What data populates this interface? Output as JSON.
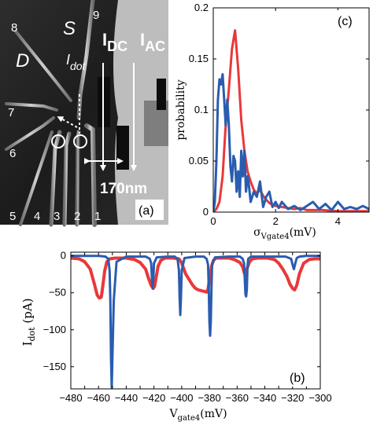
{
  "panel_a": {
    "panel_label": "(a)",
    "gate_numbers": [
      "1",
      "2",
      "3",
      "4",
      "5",
      "6",
      "7",
      "8",
      "9"
    ],
    "region_s": "S",
    "region_d": "D",
    "idot_main": "I",
    "idot_sub": "dot",
    "idc_main": "I",
    "idc_sub": "DC",
    "iac_main": "I",
    "iac_sub": "AC",
    "scale_bar": "170nm"
  },
  "chart_data": [
    {
      "panel": "b",
      "panel_label": "(b)",
      "type": "line",
      "xlabel_main": "V",
      "xlabel_sub": "gate4",
      "xlabel_unit": "(mV)",
      "ylabel_main": "I",
      "ylabel_sub": "dot",
      "ylabel_unit": " (pA)",
      "xlim": [
        -480,
        -300
      ],
      "ylim": [
        -180,
        5
      ],
      "xticks": [
        -480,
        -470,
        -460,
        -450,
        -440,
        -430,
        -420,
        -410,
        -400,
        -390,
        -380,
        -370,
        -360,
        -350,
        -340,
        -330,
        -320,
        -310,
        -300
      ],
      "xticklabels": [
        "−480",
        "−460",
        "−440",
        "−420",
        "−400",
        "−380",
        "−360",
        "−340",
        "−320",
        "−300"
      ],
      "xticklabel_values": [
        -480,
        -460,
        -440,
        -420,
        -400,
        -380,
        -360,
        -340,
        -320,
        -300
      ],
      "yticks": [
        0,
        -50,
        -100,
        -150
      ],
      "yticklabels": [
        "0",
        "−50",
        "−100",
        "−150"
      ],
      "series": [
        {
          "color": "#e8383a",
          "x": [
            -480,
            -474,
            -470,
            -466,
            -463,
            -461,
            -459.5,
            -458,
            -457,
            -455.5,
            -454,
            -452,
            -448,
            -440,
            -434,
            -430,
            -426,
            -424,
            -422,
            -420.5,
            -419.5,
            -418.5,
            -417,
            -415,
            -412,
            -406,
            -402,
            -400.5,
            -399,
            -397,
            -394,
            -392,
            -390,
            -388,
            -386,
            -384,
            -382,
            -381,
            -380,
            -378.5,
            -377,
            -375,
            -371,
            -366,
            -362,
            -358,
            -356,
            -355,
            -354,
            -353,
            -351,
            -349,
            -345,
            -338,
            -333,
            -330,
            -327,
            -324,
            -322,
            -320,
            -318.5,
            -317,
            -315,
            -312,
            -308,
            -304,
            -300
          ],
          "y": [
            -3,
            -4,
            -8,
            -18,
            -38,
            -53,
            -57,
            -56,
            -42,
            -20,
            -8,
            -4,
            -3,
            -3,
            -5,
            -9,
            -18,
            -30,
            -40,
            -44,
            -41,
            -30,
            -14,
            -6,
            -3,
            -3,
            -4,
            -8,
            -15,
            -25,
            -34,
            -40,
            -44,
            -46,
            -47,
            -48,
            -49,
            -45,
            -32,
            -14,
            -6,
            -3,
            -3,
            -3,
            -5,
            -9,
            -15,
            -22,
            -27,
            -18,
            -8,
            -4,
            -3,
            -3,
            -5,
            -10,
            -18,
            -28,
            -38,
            -44,
            -46,
            -40,
            -24,
            -10,
            -5,
            -4,
            -4
          ]
        },
        {
          "color": "#2a5cb0",
          "x": [
            -480,
            -460,
            -455,
            -453,
            -452,
            -451.5,
            -451,
            -450.5,
            -450,
            -449,
            -447,
            -440,
            -426,
            -423,
            -422,
            -421.5,
            -421,
            -420.5,
            -420,
            -418,
            -410,
            -405,
            -403,
            -402,
            -401.5,
            -401,
            -400.5,
            -400,
            -398,
            -390,
            -384,
            -382,
            -381,
            -380.5,
            -380,
            -379.5,
            -379,
            -378.5,
            -378,
            -376,
            -366,
            -358,
            -356,
            -355,
            -354.5,
            -354,
            -353.5,
            -353,
            -352.5,
            -352,
            -350,
            -340,
            -325,
            -321,
            -320,
            -319,
            -318,
            -317,
            -315,
            -310,
            -300
          ],
          "y": [
            0,
            0,
            -1,
            -4,
            -20,
            -60,
            -140,
            -178,
            -140,
            -60,
            -8,
            -1,
            -1,
            -4,
            -10,
            -30,
            -44,
            -32,
            -10,
            -2,
            -1,
            -1,
            -4,
            -20,
            -55,
            -80,
            -55,
            -20,
            -3,
            -1,
            -1,
            -4,
            -12,
            -40,
            -88,
            -108,
            -88,
            -40,
            -10,
            -2,
            -1,
            -1,
            -4,
            -10,
            -30,
            -52,
            -55,
            -45,
            -15,
            -4,
            -1,
            -1,
            -1,
            -4,
            -12,
            -18,
            -10,
            -3,
            -1,
            0,
            0
          ]
        }
      ]
    },
    {
      "panel": "c",
      "panel_label": "(c)",
      "type": "line",
      "xlabel_main": "σ",
      "xlabel_sub": "Vgate4",
      "xlabel_unit": "(mV)",
      "ylabel": "probability",
      "xlim": [
        0,
        5
      ],
      "ylim": [
        0,
        0.2
      ],
      "xticks": [
        0,
        2,
        4
      ],
      "xticklabels": [
        "0",
        "2",
        "4"
      ],
      "yticks": [
        0,
        0.05,
        0.1,
        0.15,
        0.2
      ],
      "yticklabels": [
        "0",
        "0.05",
        "0.1",
        "0.15",
        "0.2"
      ],
      "series": [
        {
          "color": "#e8383a",
          "x": [
            0,
            0.1,
            0.2,
            0.3,
            0.4,
            0.5,
            0.6,
            0.7,
            0.8,
            0.9,
            1.0,
            1.1,
            1.2,
            1.3,
            1.4,
            1.5,
            1.6,
            1.7,
            1.8,
            1.9,
            2.0,
            2.2,
            2.4,
            2.6,
            2.8,
            3.0,
            3.5,
            4.0,
            4.5,
            5.0
          ],
          "y": [
            0,
            0.003,
            0.01,
            0.035,
            0.085,
            0.12,
            0.16,
            0.178,
            0.14,
            0.09,
            0.06,
            0.04,
            0.03,
            0.022,
            0.018,
            0.022,
            0.016,
            0.012,
            0.009,
            0.007,
            0.006,
            0.005,
            0.004,
            0.003,
            0.004,
            0.002,
            0.002,
            0.001,
            0.001,
            0.001
          ]
        },
        {
          "color": "#2a5cb0",
          "x": [
            0,
            0.05,
            0.1,
            0.15,
            0.2,
            0.25,
            0.3,
            0.35,
            0.4,
            0.45,
            0.5,
            0.55,
            0.6,
            0.65,
            0.7,
            0.75,
            0.8,
            0.85,
            0.9,
            0.95,
            1.0,
            1.05,
            1.1,
            1.15,
            1.2,
            1.3,
            1.4,
            1.5,
            1.6,
            1.7,
            1.8,
            1.9,
            2.0,
            2.1,
            2.2,
            2.4,
            2.6,
            2.8,
            3.0,
            3.2,
            3.4,
            3.6,
            3.8,
            4.0,
            4.2,
            4.4,
            4.6,
            4.8,
            5.0
          ],
          "y": [
            0,
            0.01,
            0.05,
            0.11,
            0.13,
            0.125,
            0.135,
            0.11,
            0.085,
            0.11,
            0.085,
            0.045,
            0.03,
            0.055,
            0.05,
            0.02,
            0.04,
            0.015,
            0.06,
            0.035,
            0.06,
            0.02,
            0.035,
            0.025,
            0.01,
            0.02,
            0.015,
            0.03,
            0.005,
            0.015,
            0.02,
            0.005,
            0.01,
            0.004,
            0.01,
            0.003,
            0.006,
            0.002,
            0.006,
            0.01,
            0.003,
            0.008,
            0.002,
            0.01,
            0.003,
            0.005,
            0.003,
            0.006,
            0.003
          ]
        }
      ]
    }
  ]
}
